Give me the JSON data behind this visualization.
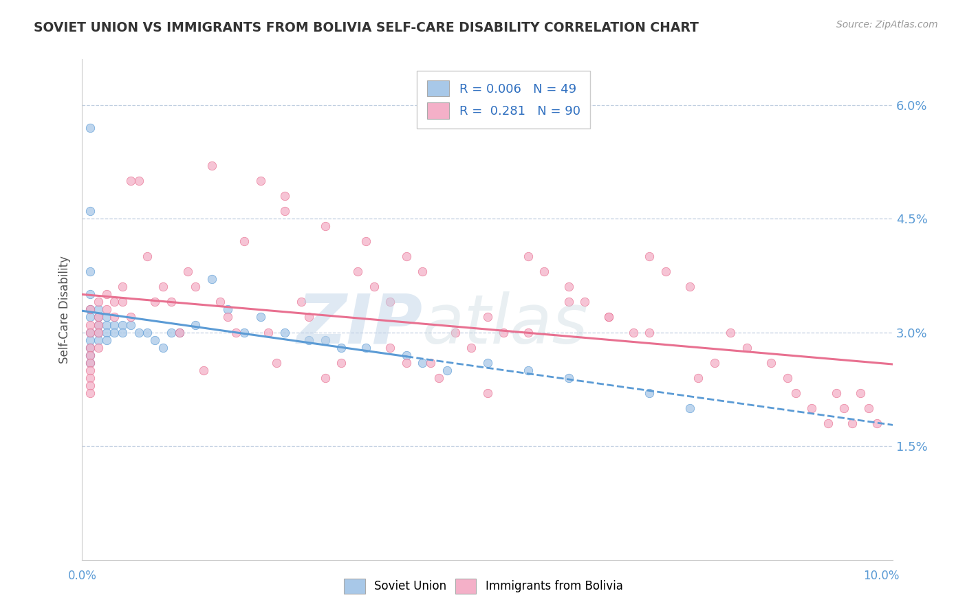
{
  "title": "SOVIET UNION VS IMMIGRANTS FROM BOLIVIA SELF-CARE DISABILITY CORRELATION CHART",
  "source": "Source: ZipAtlas.com",
  "ylabel": "Self-Care Disability",
  "r_soviet": 0.006,
  "n_soviet": 49,
  "r_bolivia": 0.281,
  "n_bolivia": 90,
  "color_soviet": "#a8c8e8",
  "color_bolivia": "#f4b0c8",
  "line_color_soviet": "#5b9bd5",
  "line_color_bolivia": "#e87090",
  "ytick_labels": [
    "6.0%",
    "4.5%",
    "3.0%",
    "1.5%"
  ],
  "ytick_values": [
    0.06,
    0.045,
    0.03,
    0.015
  ],
  "xlim": [
    0.0,
    0.1
  ],
  "ylim": [
    0.0,
    0.066
  ],
  "soviet_x": [
    0.001,
    0.001,
    0.001,
    0.001,
    0.001,
    0.001,
    0.001,
    0.001,
    0.001,
    0.001,
    0.001,
    0.002,
    0.002,
    0.002,
    0.002,
    0.002,
    0.003,
    0.003,
    0.003,
    0.003,
    0.004,
    0.004,
    0.005,
    0.005,
    0.006,
    0.007,
    0.008,
    0.009,
    0.01,
    0.011,
    0.012,
    0.014,
    0.016,
    0.018,
    0.02,
    0.022,
    0.025,
    0.028,
    0.03,
    0.032,
    0.035,
    0.04,
    0.042,
    0.045,
    0.05,
    0.055,
    0.06,
    0.07,
    0.075
  ],
  "soviet_y": [
    0.057,
    0.046,
    0.038,
    0.035,
    0.033,
    0.032,
    0.03,
    0.029,
    0.028,
    0.027,
    0.026,
    0.033,
    0.032,
    0.031,
    0.03,
    0.029,
    0.032,
    0.031,
    0.03,
    0.029,
    0.031,
    0.03,
    0.031,
    0.03,
    0.031,
    0.03,
    0.03,
    0.029,
    0.028,
    0.03,
    0.03,
    0.031,
    0.037,
    0.033,
    0.03,
    0.032,
    0.03,
    0.029,
    0.029,
    0.028,
    0.028,
    0.027,
    0.026,
    0.025,
    0.026,
    0.025,
    0.024,
    0.022,
    0.02
  ],
  "bolivia_x": [
    0.001,
    0.001,
    0.001,
    0.001,
    0.001,
    0.001,
    0.001,
    0.001,
    0.001,
    0.001,
    0.002,
    0.002,
    0.002,
    0.002,
    0.002,
    0.003,
    0.003,
    0.004,
    0.004,
    0.005,
    0.005,
    0.006,
    0.006,
    0.007,
    0.008,
    0.009,
    0.01,
    0.011,
    0.012,
    0.013,
    0.014,
    0.015,
    0.016,
    0.017,
    0.018,
    0.019,
    0.02,
    0.022,
    0.023,
    0.024,
    0.025,
    0.027,
    0.028,
    0.03,
    0.032,
    0.034,
    0.036,
    0.038,
    0.04,
    0.042,
    0.043,
    0.044,
    0.046,
    0.048,
    0.05,
    0.052,
    0.055,
    0.057,
    0.06,
    0.062,
    0.065,
    0.068,
    0.07,
    0.072,
    0.075,
    0.076,
    0.078,
    0.08,
    0.082,
    0.085,
    0.087,
    0.088,
    0.09,
    0.092,
    0.093,
    0.094,
    0.095,
    0.096,
    0.097,
    0.098,
    0.05,
    0.055,
    0.06,
    0.065,
    0.07,
    0.038,
    0.04,
    0.025,
    0.03,
    0.035
  ],
  "bolivia_y": [
    0.033,
    0.031,
    0.03,
    0.028,
    0.027,
    0.026,
    0.025,
    0.024,
    0.023,
    0.022,
    0.034,
    0.032,
    0.031,
    0.03,
    0.028,
    0.035,
    0.033,
    0.034,
    0.032,
    0.036,
    0.034,
    0.05,
    0.032,
    0.05,
    0.04,
    0.034,
    0.036,
    0.034,
    0.03,
    0.038,
    0.036,
    0.025,
    0.052,
    0.034,
    0.032,
    0.03,
    0.042,
    0.05,
    0.03,
    0.026,
    0.048,
    0.034,
    0.032,
    0.024,
    0.026,
    0.038,
    0.036,
    0.034,
    0.04,
    0.038,
    0.026,
    0.024,
    0.03,
    0.028,
    0.022,
    0.03,
    0.04,
    0.038,
    0.036,
    0.034,
    0.032,
    0.03,
    0.04,
    0.038,
    0.036,
    0.024,
    0.026,
    0.03,
    0.028,
    0.026,
    0.024,
    0.022,
    0.02,
    0.018,
    0.022,
    0.02,
    0.018,
    0.022,
    0.02,
    0.018,
    0.032,
    0.03,
    0.034,
    0.032,
    0.03,
    0.028,
    0.026,
    0.046,
    0.044,
    0.042
  ]
}
